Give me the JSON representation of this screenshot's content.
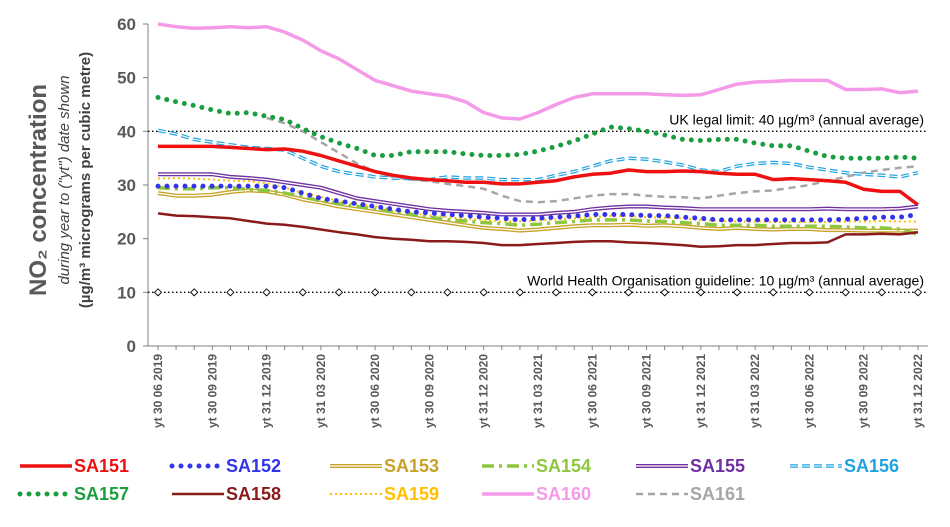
{
  "chart_data": {
    "type": "line",
    "title": "NO₂ concentration",
    "ylabel_line2": "during year to (\"yt\") date shown",
    "ylabel_line3": "(µg/m³ micrograms per cubic metre)",
    "ylim": [
      0,
      60
    ],
    "yticks": [
      0,
      10,
      20,
      30,
      40,
      50,
      60
    ],
    "x_count": 43,
    "x_tick_labels": [
      {
        "i": 0,
        "label": "yt 30 06 2019"
      },
      {
        "i": 3,
        "label": "yt 30 09 2019"
      },
      {
        "i": 6,
        "label": "yt 31 12 2019"
      },
      {
        "i": 9,
        "label": "yt 31 03 2020"
      },
      {
        "i": 12,
        "label": "yt 30 06 2020"
      },
      {
        "i": 15,
        "label": "yt 30 09 2020"
      },
      {
        "i": 18,
        "label": "yt 31 12 2020"
      },
      {
        "i": 21,
        "label": "yt 31 03 2021"
      },
      {
        "i": 24,
        "label": "yt 30 06 2021"
      },
      {
        "i": 27,
        "label": "yt 30 09 2021"
      },
      {
        "i": 30,
        "label": "yt 31 12 2021"
      },
      {
        "i": 33,
        "label": "yt 31 03 2022"
      },
      {
        "i": 36,
        "label": "yt 30 06 2022"
      },
      {
        "i": 39,
        "label": "yt 30 09 2022"
      },
      {
        "i": 42,
        "label": "yt 31 12 2022"
      }
    ],
    "reference_lines": [
      {
        "value": 40,
        "label": "UK legal limit:  40 µg/m³ (annual average)",
        "style": "dotted-black",
        "marker": "none"
      },
      {
        "value": 10,
        "label": "World Health Organisation guideline:  10 µg/m³ (annual average)",
        "style": "dotted-black",
        "marker": "diamond"
      }
    ],
    "legend_position": "bottom",
    "series": [
      {
        "name": "SA151",
        "color": "#ee1111",
        "style": "solid-thick",
        "values": [
          37.2,
          37.2,
          37.2,
          37.2,
          37,
          36.8,
          36.6,
          36.7,
          36.3,
          35.5,
          34.5,
          33.5,
          32.5,
          31.8,
          31.3,
          31,
          30.8,
          30.5,
          30.5,
          30.2,
          30.2,
          30.5,
          30.8,
          31.5,
          32,
          32.2,
          32.8,
          32.5,
          32.5,
          32.6,
          32.5,
          32.2,
          32,
          32,
          31,
          31.2,
          31,
          30.8,
          30.5,
          29.2,
          28.8,
          28.8,
          26.3
        ]
      },
      {
        "name": "SA152",
        "color": "#3333ee",
        "style": "dotted-round",
        "values": [
          29.8,
          29.8,
          29.8,
          29.8,
          29.8,
          29.8,
          29.8,
          29.5,
          28.5,
          27.5,
          27,
          26.5,
          26,
          25.5,
          25,
          24.8,
          24.5,
          24.3,
          24,
          23.8,
          23.5,
          23.8,
          24,
          24.2,
          24.5,
          24.5,
          24.5,
          24.3,
          24.3,
          24,
          23.8,
          23.5,
          23.5,
          23.5,
          23.5,
          23.5,
          23.5,
          23.5,
          23.6,
          23.8,
          24,
          24,
          24.5
        ]
      },
      {
        "name": "SA153",
        "color": "#c9a227",
        "style": "double",
        "values": [
          28.5,
          28,
          28,
          28.2,
          28.7,
          29,
          28.8,
          28.2,
          27.3,
          26.7,
          26,
          25.5,
          25,
          24.5,
          24,
          23.5,
          23,
          22.5,
          22,
          21.8,
          21.5,
          21.7,
          22,
          22.3,
          22.5,
          22.5,
          22.6,
          22.4,
          22.5,
          22.3,
          22,
          21.8,
          22,
          21.8,
          21.7,
          21.8,
          21.8,
          21.6,
          21.6,
          21.5,
          21.5,
          21.5,
          21.5
        ]
      },
      {
        "name": "SA154",
        "color": "#8dc63f",
        "style": "dash-dot",
        "values": [
          29.5,
          29.3,
          29.3,
          29.5,
          29.5,
          29.2,
          29,
          28.5,
          27.8,
          27,
          26.5,
          26,
          25.5,
          25,
          24.5,
          24,
          23.5,
          23.3,
          23,
          22.8,
          22.5,
          22.7,
          23,
          23.2,
          23.5,
          23.5,
          23.5,
          23.3,
          23.2,
          23,
          22.8,
          22.5,
          22.5,
          22.5,
          22.3,
          22.3,
          22.3,
          22.3,
          22.2,
          22,
          22,
          21.8,
          20.8
        ]
      },
      {
        "name": "SA155",
        "color": "#7030a0",
        "style": "double",
        "values": [
          32,
          32,
          32,
          32,
          31.5,
          31.3,
          31,
          30.5,
          30,
          29.5,
          28.5,
          27.5,
          27,
          26.5,
          26,
          25.5,
          25.2,
          25,
          24.8,
          24.5,
          24.5,
          24.5,
          24.8,
          25,
          25.5,
          25.8,
          26,
          26,
          25.8,
          25.7,
          25.5,
          25.5,
          25.5,
          25.5,
          25.5,
          25.5,
          25.5,
          25.6,
          25.5,
          25.5,
          25.5,
          25.6,
          26
        ]
      },
      {
        "name": "SA156",
        "color": "#1fa3e0",
        "style": "dashed-double",
        "values": [
          40.2,
          39.5,
          38.5,
          38,
          37.5,
          37,
          36.8,
          36.5,
          35,
          33.5,
          32.5,
          32,
          31.5,
          31.3,
          31.2,
          31,
          31.5,
          31.3,
          31.3,
          31,
          31,
          31,
          31.8,
          32.5,
          33.5,
          34.5,
          35,
          34.8,
          34.3,
          33.7,
          32.8,
          32.5,
          33.5,
          34,
          34.2,
          34,
          33.3,
          32.8,
          32.3,
          32,
          31.8,
          31.5,
          32.3
        ]
      },
      {
        "name": "SA157",
        "color": "#1a9e3f",
        "style": "dotted-round",
        "values": [
          46.3,
          45.5,
          44.8,
          44,
          43.3,
          43.5,
          42.8,
          42.2,
          40.5,
          39,
          37.8,
          36.8,
          35.5,
          35.5,
          36.2,
          36.2,
          36.2,
          35.8,
          35.5,
          35.5,
          35.7,
          36.3,
          37.2,
          38.2,
          39.5,
          40.8,
          40.5,
          40,
          39.3,
          38.5,
          38.3,
          38.5,
          38.5,
          37.8,
          37.3,
          37.3,
          36.3,
          35.3,
          35,
          35,
          35,
          35.2,
          35
        ]
      },
      {
        "name": "SA158",
        "color": "#8b1a1a",
        "style": "solid",
        "values": [
          24.7,
          24.3,
          24.2,
          24,
          23.8,
          23.3,
          22.8,
          22.6,
          22.2,
          21.7,
          21.2,
          20.8,
          20.3,
          20,
          19.8,
          19.5,
          19.5,
          19.4,
          19.2,
          18.8,
          18.8,
          19,
          19.2,
          19.4,
          19.5,
          19.5,
          19.3,
          19.2,
          19,
          18.8,
          18.5,
          18.6,
          18.8,
          18.8,
          19,
          19.2,
          19.2,
          19.3,
          20.8,
          20.8,
          20.9,
          20.8,
          21.2
        ]
      },
      {
        "name": "SA159",
        "color": "#ffc000",
        "style": "dotted",
        "values": [
          31.2,
          31.3,
          31.2,
          31,
          30.8,
          30.7,
          30.3,
          29.5,
          28.5,
          27.8,
          27,
          26.5,
          26,
          25.3,
          24.8,
          24.3,
          24,
          23.7,
          23.5,
          23.2,
          23.2,
          23.4,
          23.6,
          23.8,
          24,
          24.2,
          24.2,
          24,
          23.9,
          23.8,
          23.5,
          23.3,
          23.2,
          23.2,
          23.1,
          23.1,
          23.1,
          23.1,
          23.2,
          23.2,
          23.3,
          23.2,
          23.2
        ]
      },
      {
        "name": "SA160",
        "color": "#f49ae8",
        "style": "solid-thick",
        "values": [
          60,
          59.5,
          59.2,
          59.3,
          59.5,
          59.3,
          59.5,
          58.5,
          57,
          55,
          53.5,
          51.5,
          49.5,
          48.5,
          47.5,
          47,
          46.5,
          45.5,
          43.5,
          42.5,
          42.3,
          43.5,
          45,
          46.3,
          47,
          47,
          47,
          47,
          46.8,
          46.7,
          46.8,
          47.8,
          48.8,
          49.2,
          49.3,
          49.5,
          49.5,
          49.5,
          47.8,
          47.8,
          47.9,
          47.2,
          47.5
        ]
      },
      {
        "name": "SA161",
        "color": "#a6a6a6",
        "style": "dashed",
        "values": [
          null,
          null,
          null,
          null,
          null,
          null,
          42.5,
          41.5,
          40,
          38,
          36,
          34,
          32.5,
          31.5,
          31,
          30.7,
          30.2,
          29.8,
          29.3,
          28,
          27,
          26.8,
          27,
          27.5,
          28,
          28.3,
          28.3,
          28,
          27.8,
          27.7,
          27.5,
          28,
          28.5,
          28.8,
          29,
          29.5,
          30,
          30.8,
          31.5,
          32.3,
          32.8,
          33.2,
          33.5
        ]
      }
    ]
  }
}
